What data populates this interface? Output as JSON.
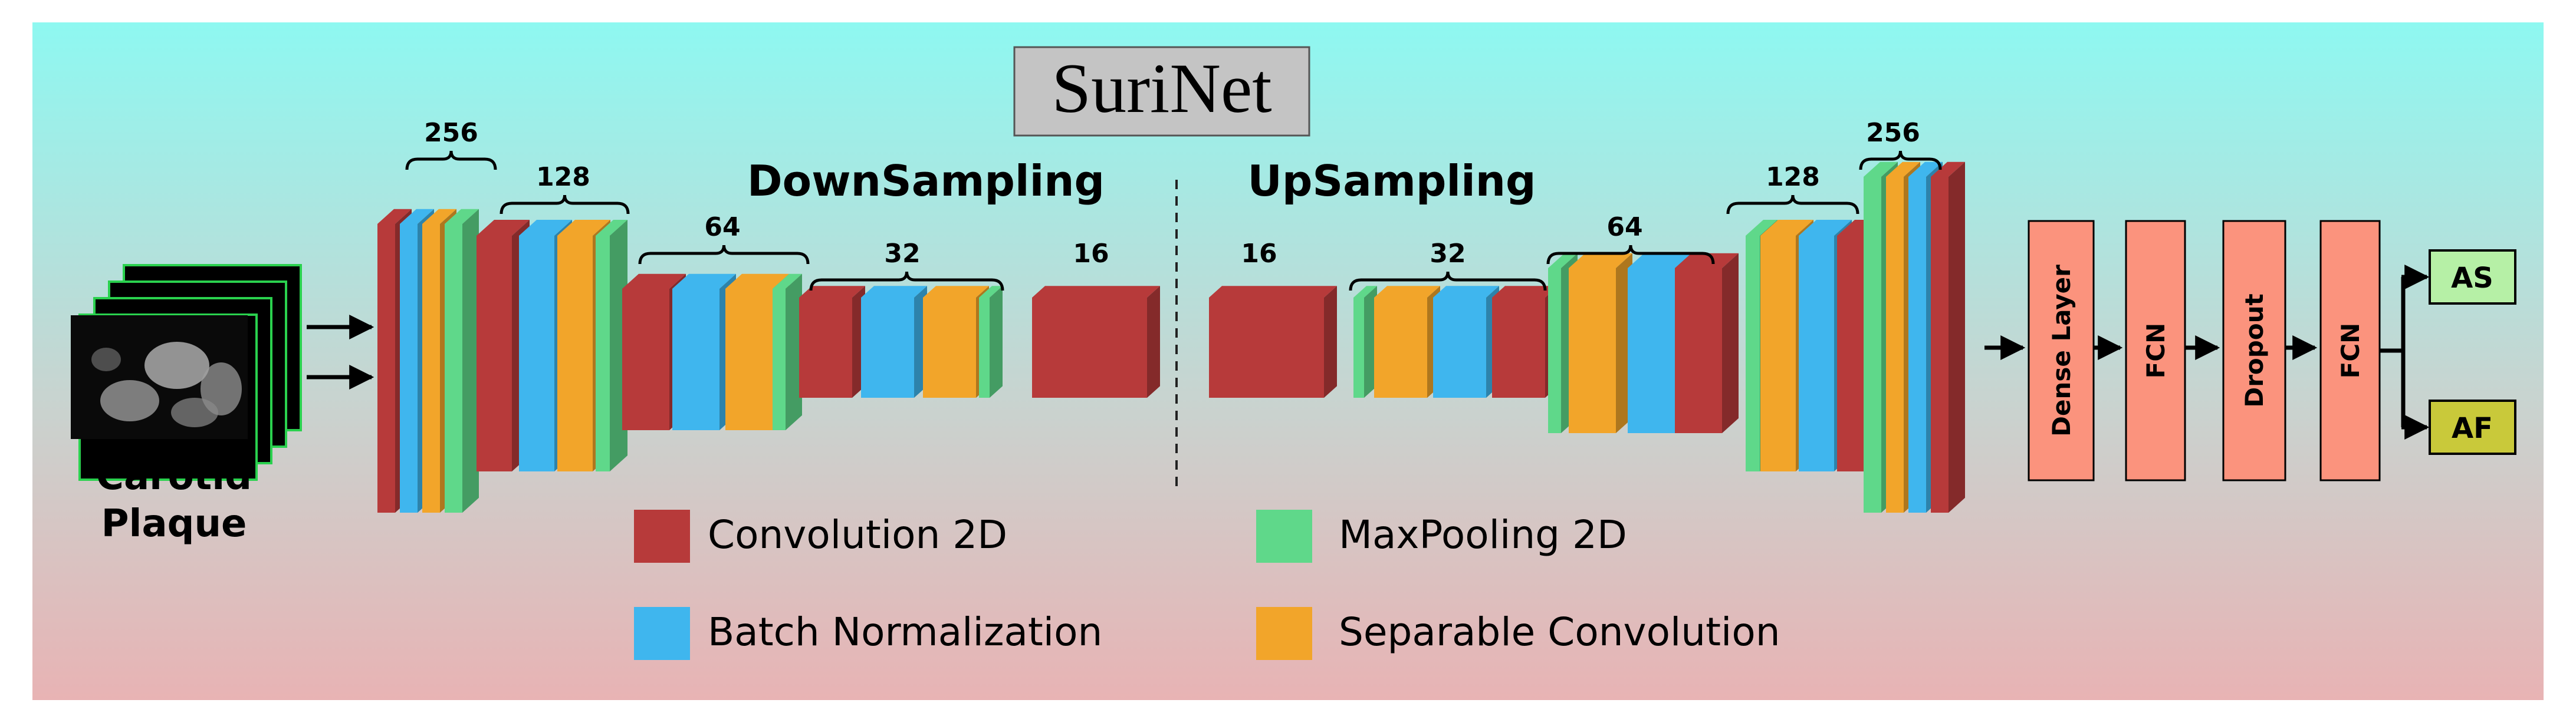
{
  "title": "SuriNet",
  "input_label": [
    "Carotid",
    "Plaque"
  ],
  "sections": {
    "down": "DownSampling",
    "up": "UpSampling"
  },
  "filters": {
    "f256": "256",
    "f128": "128",
    "f64": "64",
    "f32": "32",
    "f16": "16"
  },
  "legend": {
    "conv": "Convolution 2D",
    "bn": "Batch Normalization",
    "pool": "MaxPooling 2D",
    "sep": "Separable Convolution"
  },
  "head": {
    "dense": "Dense Layer",
    "fcn": "FCN",
    "dropout": "Dropout",
    "out_as": "AS",
    "out_af": "AF"
  },
  "colors": {
    "conv": "#b73a3a",
    "bn": "#3fb6ee",
    "pool": "#5fd88a",
    "sep": "#f2a52a",
    "head_box": "#fb937d",
    "out_as": "#b6f0a6",
    "out_af": "#c9c93a",
    "bg_top": "#8ef8f1",
    "bg_bottom": "#e8b3b4"
  }
}
